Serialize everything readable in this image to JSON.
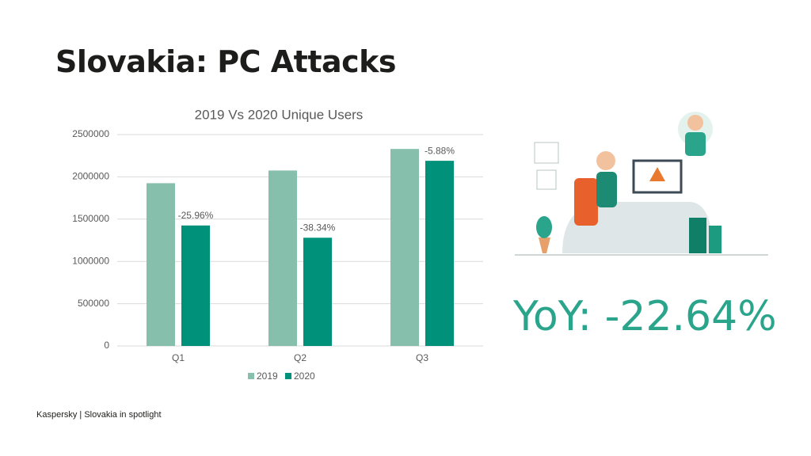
{
  "slide": {
    "title": "Slovakia: PC Attacks",
    "kpi": "YoY: -22.64%",
    "footer": "Kaspersky | Slovakia in spotlight"
  },
  "chart_data": {
    "type": "bar",
    "title": "2019 Vs 2020 Unique Users",
    "categories": [
      "Q1",
      "Q2",
      "Q3"
    ],
    "series": [
      {
        "name": "2019",
        "color": "#86c0ad",
        "values": [
          1925000,
          2075000,
          2330000
        ]
      },
      {
        "name": "2020",
        "color": "#00917a",
        "values": [
          1425000,
          1280000,
          2190000
        ],
        "annotations": [
          "-25.96%",
          "-38.34%",
          "-5.88%"
        ]
      }
    ],
    "ylim": [
      0,
      2500000
    ],
    "yticks": [
      0,
      500000,
      1000000,
      1500000,
      2000000,
      2500000
    ],
    "grid": true,
    "legend": "bottom"
  }
}
